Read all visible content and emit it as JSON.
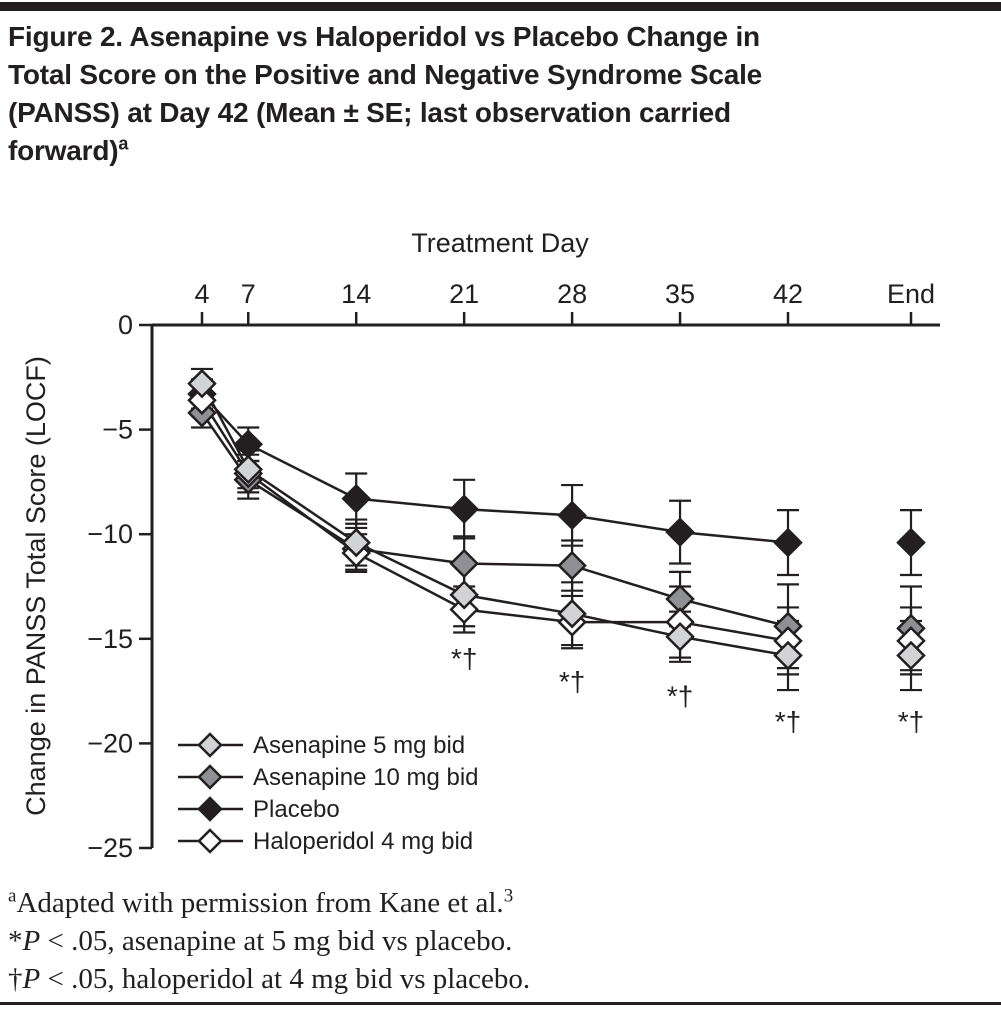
{
  "figure": {
    "title_line1": "Figure 2. Asenapine vs Haloperidol vs Placebo Change in",
    "title_line2": "Total Score on the Positive and Negative Syndrome Scale",
    "title_line3": "(PANSS) at Day 42 (Mean ± SE; last observation carried",
    "title_line4": "forward)",
    "title_sup": "a"
  },
  "chart_data": {
    "type": "line",
    "title": "",
    "xlabel": "Treatment Day",
    "ylabel": "Change in PANSS Total Score (LOCF)",
    "x_axis_position": "top",
    "x_ticks": [
      "4",
      "7",
      "14",
      "21",
      "28",
      "35",
      "42",
      "End"
    ],
    "y_ticks": [
      0,
      -5,
      -10,
      -15,
      -20,
      -25
    ],
    "y_tick_labels": [
      "0",
      "−5",
      "−10",
      "−15",
      "−20",
      "−25"
    ],
    "ylim": [
      -25,
      0
    ],
    "grid": false,
    "legend_position": "lower-left",
    "end_column_disconnected": true,
    "error_bars": "±SE",
    "series": [
      {
        "name": "Asenapine 5 mg bid",
        "marker": "diamond",
        "fill": "#d2d3d5",
        "values": [
          -2.8,
          -6.9,
          -10.4,
          -12.9,
          -13.8,
          -14.9,
          -15.8,
          -15.8
        ],
        "se": [
          0.7,
          0.9,
          1.1,
          1.5,
          1.5,
          1.2,
          1.65,
          1.65
        ]
      },
      {
        "name": "Asenapine 10 mg bid",
        "marker": "diamond",
        "fill": "#8e9093",
        "values": [
          -4.2,
          -7.4,
          -10.7,
          -11.4,
          -11.5,
          -13.1,
          -14.4,
          -14.5
        ],
        "se": [
          0.7,
          0.9,
          1.0,
          1.3,
          1.2,
          1.3,
          2.0,
          2.0
        ]
      },
      {
        "name": "Placebo",
        "marker": "diamond",
        "fill": "#231f20",
        "values": [
          -3.3,
          -5.7,
          -8.3,
          -8.8,
          -9.1,
          -9.9,
          -10.4,
          -10.4
        ],
        "se": [
          0.7,
          0.8,
          1.2,
          1.4,
          1.45,
          1.5,
          1.55,
          1.55
        ]
      },
      {
        "name": "Haloperidol 4 mg bid",
        "marker": "diamond",
        "fill": "#ffffff",
        "values": [
          -3.6,
          -7.1,
          -10.9,
          -13.6,
          -14.2,
          -14.2,
          -15.1,
          -15.1
        ],
        "se": [
          0.75,
          0.9,
          0.9,
          1.1,
          1.25,
          1.7,
          1.6,
          1.6
        ]
      }
    ],
    "significance": {
      "label": "*†",
      "x_ticks": [
        "21",
        "28",
        "35",
        "42",
        "End"
      ],
      "baseline_values": [
        -16.4,
        -17.5,
        -18.2,
        -19.4,
        -19.4
      ]
    }
  },
  "footnotes": {
    "a": {
      "sup_prefix": "a",
      "text": "Adapted with permission from Kane et al.",
      "sup_suffix": "3"
    },
    "star": {
      "symbol": "*",
      "p_label": "P",
      "text": " < .05, asenapine at 5 mg bid vs placebo."
    },
    "dagger": {
      "symbol": "†",
      "p_label": "P",
      "text": " < .05, haloperidol at 4 mg bid vs placebo."
    }
  },
  "colors": {
    "ink": "#231f20",
    "background": "#ffffff"
  }
}
